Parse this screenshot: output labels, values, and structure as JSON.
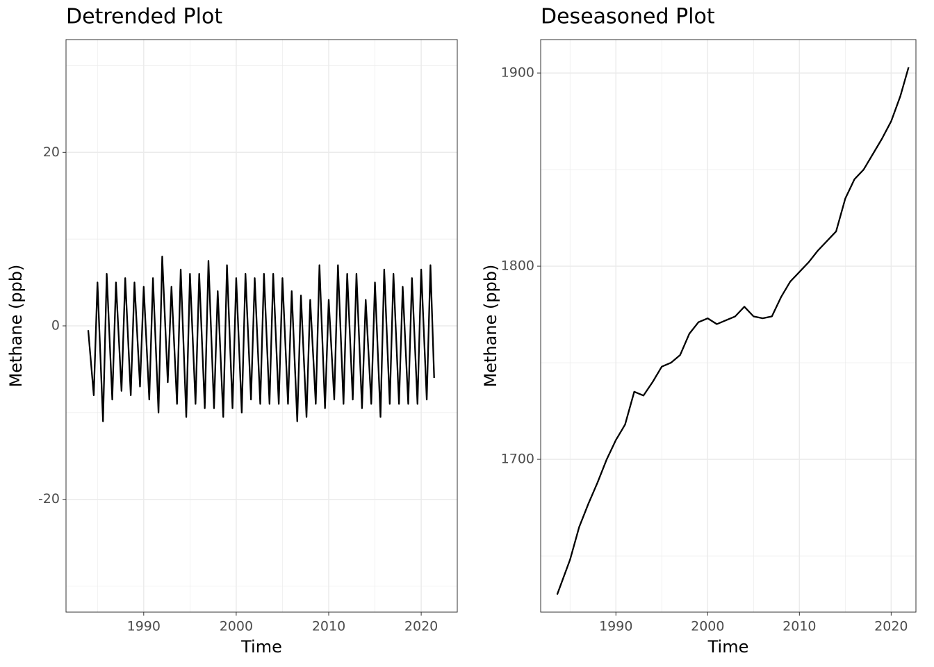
{
  "chart_data": [
    {
      "type": "line",
      "title": "Detrended Plot",
      "x_label": "Time",
      "y_label": "Methane (ppb)",
      "xlim": [
        1981.6,
        2023.9
      ],
      "ylim": [
        -33,
        33
      ],
      "xticks": [
        1990,
        2000,
        2010,
        2020
      ],
      "yticks": [
        -20,
        0,
        20
      ],
      "xminor": [
        1985,
        1995,
        2005,
        2015
      ],
      "yminor": [
        -30,
        -10,
        10,
        30
      ],
      "grid": true,
      "x": [
        1984.0,
        1984.6,
        1985.0,
        1985.6,
        1986.0,
        1986.6,
        1987.0,
        1987.6,
        1988.0,
        1988.6,
        1989.0,
        1989.6,
        1990.0,
        1990.6,
        1991.0,
        1991.6,
        1992.0,
        1992.6,
        1993.0,
        1993.6,
        1994.0,
        1994.6,
        1995.0,
        1995.6,
        1996.0,
        1996.6,
        1997.0,
        1997.6,
        1998.0,
        1998.6,
        1999.0,
        1999.6,
        2000.0,
        2000.6,
        2001.0,
        2001.6,
        2002.0,
        2002.6,
        2003.0,
        2003.6,
        2004.0,
        2004.6,
        2005.0,
        2005.6,
        2006.0,
        2006.6,
        2007.0,
        2007.6,
        2008.0,
        2008.6,
        2009.0,
        2009.6,
        2010.0,
        2010.6,
        2011.0,
        2011.6,
        2012.0,
        2012.6,
        2013.0,
        2013.6,
        2014.0,
        2014.6,
        2015.0,
        2015.6,
        2016.0,
        2016.6,
        2017.0,
        2017.6,
        2018.0,
        2018.6,
        2019.0,
        2019.6,
        2020.0,
        2020.6,
        2021.0,
        2021.4
      ],
      "series": [
        {
          "color": "#000000",
          "values": [
            -0.5,
            -8,
            5,
            -11,
            6,
            -8.5,
            5,
            -7.5,
            5.5,
            -8,
            5,
            -7,
            4.5,
            -8.5,
            5.5,
            -10,
            8,
            -6.5,
            4.5,
            -9,
            6.5,
            -10.5,
            6,
            -9,
            6,
            -9.5,
            7.5,
            -9.5,
            4,
            -10.5,
            7,
            -9.5,
            5.5,
            -10,
            6,
            -8.5,
            5.5,
            -9,
            6,
            -9,
            6,
            -9,
            5.5,
            -9,
            4,
            -11,
            3.5,
            -10.5,
            3,
            -9,
            7,
            -9.5,
            3,
            -8.5,
            7,
            -9,
            6,
            -8.5,
            6,
            -9.5,
            3,
            -9,
            5,
            -10.5,
            6.5,
            -9,
            6,
            -9,
            4.5,
            -9,
            5.5,
            -9,
            6.5,
            -8.5,
            7,
            -6
          ]
        }
      ]
    },
    {
      "type": "line",
      "title": "Deseasoned Plot",
      "x_label": "Time",
      "y_label": "Methane (ppb)",
      "xlim": [
        1981.8,
        2022.7
      ],
      "ylim": [
        1620.9,
        1917.3
      ],
      "xticks": [
        1990,
        2000,
        2010,
        2020
      ],
      "yticks": [
        1700,
        1800,
        1900
      ],
      "xminor": [
        1985,
        1995,
        2005,
        2015
      ],
      "yminor": [
        1650,
        1750,
        1850
      ],
      "grid": true,
      "x": [
        1983.6,
        1985,
        1986,
        1987,
        1988,
        1989,
        1990,
        1991,
        1992,
        1993,
        1994,
        1995,
        1996,
        1997,
        1998,
        1999,
        2000,
        2001,
        2002,
        2003,
        2004,
        2005,
        2006,
        2007,
        2008,
        2009,
        2010,
        2011,
        2012,
        2013,
        2014,
        2015,
        2016,
        2017,
        2018,
        2019,
        2020,
        2021,
        2021.9
      ],
      "series": [
        {
          "color": "#000000",
          "values": [
            1630,
            1648,
            1665,
            1677,
            1688,
            1700,
            1710,
            1718,
            1735,
            1733,
            1740,
            1748,
            1750,
            1754,
            1765,
            1771,
            1773,
            1770,
            1772,
            1774,
            1779,
            1774,
            1773,
            1774,
            1784,
            1792,
            1797,
            1802,
            1808,
            1813,
            1818,
            1835,
            1845,
            1850,
            1858,
            1866,
            1875,
            1888,
            1903
          ]
        }
      ]
    }
  ]
}
